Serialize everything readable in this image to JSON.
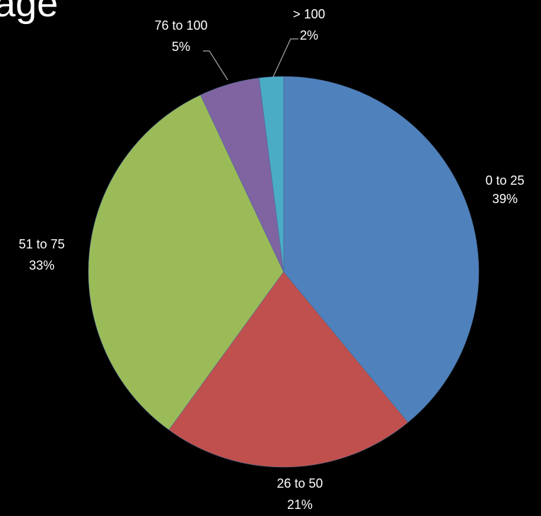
{
  "title_fragment": "age",
  "chart_data": {
    "type": "pie",
    "title": "age",
    "start_angle_deg": 0,
    "direction": "clockwise",
    "slices": [
      {
        "category": "0 to 25",
        "percent_label": "39%",
        "value": 39,
        "color": "#4f81bd"
      },
      {
        "category": "26 to 50",
        "percent_label": "21%",
        "value": 21,
        "color": "#c0504d"
      },
      {
        "category": "51 to 75",
        "percent_label": "33%",
        "value": 33,
        "color": "#9bbb59"
      },
      {
        "category": "76 to 100",
        "percent_label": "5%",
        "value": 5,
        "color": "#8064a2"
      },
      {
        "category": "> 100",
        "percent_label": "2%",
        "value": 2,
        "color": "#4bacc6"
      }
    ]
  }
}
